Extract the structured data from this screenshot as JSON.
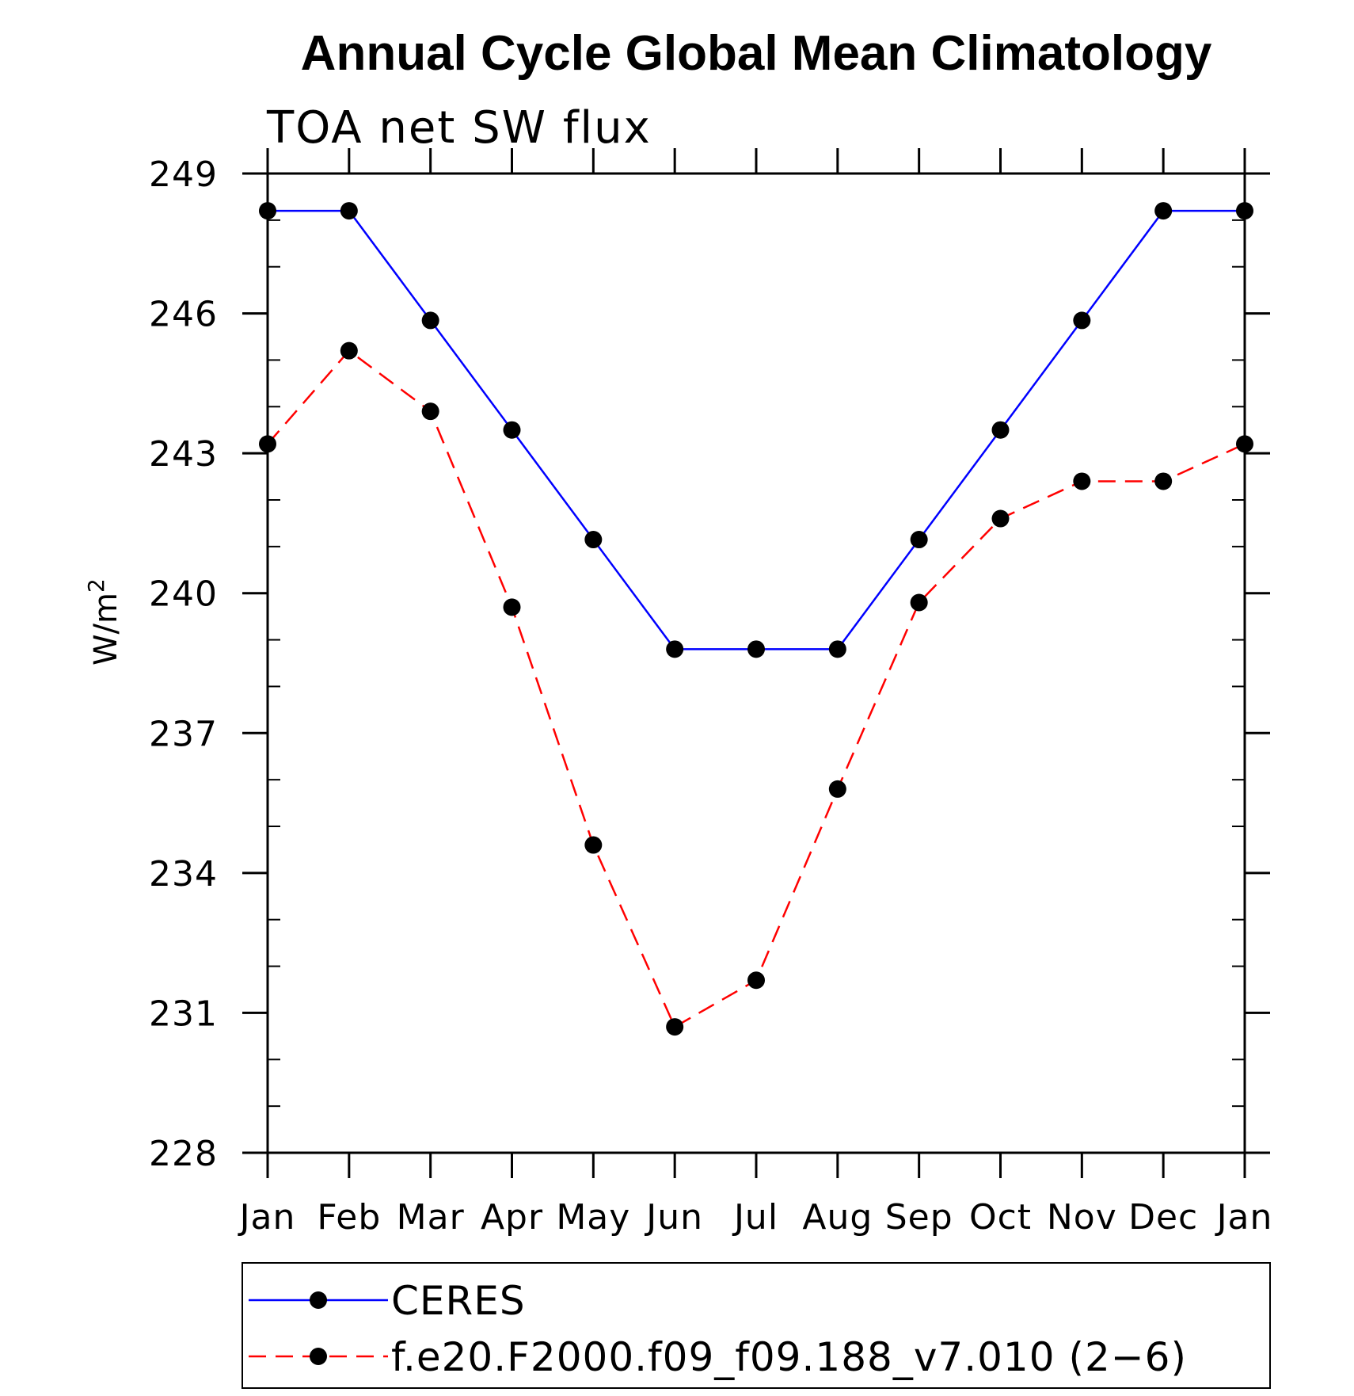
{
  "chart_data": {
    "type": "line",
    "title": "Annual Cycle Global Mean Climatology",
    "subtitle": "TOA net SW flux",
    "ylabel": "W/m",
    "ylabel_superscript": "2",
    "categories": [
      "Jan",
      "Feb",
      "Mar",
      "Apr",
      "May",
      "Jun",
      "Jul",
      "Aug",
      "Sep",
      "Oct",
      "Nov",
      "Dec",
      "Jan"
    ],
    "yticks": [
      "228",
      "231",
      "234",
      "237",
      "240",
      "243",
      "246",
      "249"
    ],
    "ylim": [
      228,
      249
    ],
    "series": [
      {
        "name": "CERES",
        "color": "#0000ff",
        "dash": "solid",
        "marker": "filled-circle",
        "values": [
          248.2,
          248.2,
          245.85,
          243.5,
          241.15,
          238.8,
          238.8,
          238.8,
          241.15,
          243.5,
          245.85,
          248.2,
          248.2
        ]
      },
      {
        "name": "f.e20.F2000.f09_f09.188_v7.010 (2−6)",
        "color": "#ff0000",
        "dash": "dashed",
        "marker": "filled-circle",
        "values": [
          243.2,
          245.2,
          243.9,
          239.7,
          234.6,
          230.7,
          231.7,
          235.8,
          239.8,
          241.6,
          242.4,
          242.4,
          243.2
        ]
      }
    ],
    "legend_position": "bottom",
    "grid": false
  }
}
